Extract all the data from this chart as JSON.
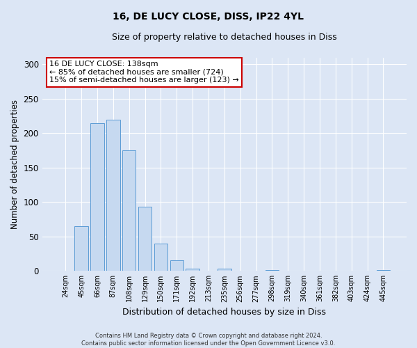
{
  "title": "16, DE LUCY CLOSE, DISS, IP22 4YL",
  "subtitle": "Size of property relative to detached houses in Diss",
  "xlabel": "Distribution of detached houses by size in Diss",
  "ylabel": "Number of detached properties",
  "bar_color": "#c6d9f0",
  "bar_edge_color": "#5b9bd5",
  "background_color": "#dce6f5",
  "categories": [
    "24sqm",
    "45sqm",
    "66sqm",
    "87sqm",
    "108sqm",
    "129sqm",
    "150sqm",
    "171sqm",
    "192sqm",
    "213sqm",
    "235sqm",
    "256sqm",
    "277sqm",
    "298sqm",
    "319sqm",
    "340sqm",
    "361sqm",
    "382sqm",
    "403sqm",
    "424sqm",
    "445sqm"
  ],
  "values": [
    0,
    65,
    215,
    220,
    175,
    93,
    40,
    15,
    3,
    0,
    3,
    0,
    0,
    1,
    0,
    0,
    0,
    0,
    0,
    0,
    1
  ],
  "ylim": [
    0,
    310
  ],
  "yticks": [
    0,
    50,
    100,
    150,
    200,
    250,
    300
  ],
  "annotation_text": "16 DE LUCY CLOSE: 138sqm\n← 85% of detached houses are smaller (724)\n15% of semi-detached houses are larger (123) →",
  "annotation_box_color": "white",
  "annotation_box_edge_color": "#cc0000",
  "footnote": "Contains HM Land Registry data © Crown copyright and database right 2024.\nContains public sector information licensed under the Open Government Licence v3.0."
}
